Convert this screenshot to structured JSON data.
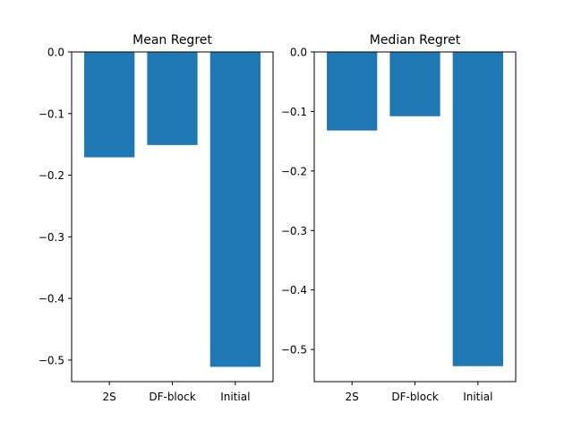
{
  "chart_data": [
    {
      "type": "bar",
      "title": "Mean Regret",
      "categories": [
        "2S",
        "DF-block",
        "Initial"
      ],
      "values": [
        -0.171,
        -0.151,
        -0.511
      ],
      "ylim": [
        -0.535,
        0.0
      ],
      "yticks": [
        0.0,
        -0.1,
        -0.2,
        -0.3,
        -0.4,
        -0.5
      ],
      "ytick_labels": [
        "0.0",
        "−0.1",
        "−0.2",
        "−0.3",
        "−0.4",
        "−0.5"
      ],
      "xlabel": "",
      "ylabel": "",
      "grid": false,
      "bar_color": "#1f77b4"
    },
    {
      "type": "bar",
      "title": "Median Regret",
      "categories": [
        "2S",
        "DF-block",
        "Initial"
      ],
      "values": [
        -0.132,
        -0.108,
        -0.528
      ],
      "ylim": [
        -0.554,
        0.0
      ],
      "yticks": [
        0.0,
        -0.1,
        -0.2,
        -0.3,
        -0.4,
        -0.5
      ],
      "ytick_labels": [
        "0.0",
        "−0.1",
        "−0.2",
        "−0.3",
        "−0.4",
        "−0.5"
      ],
      "xlabel": "",
      "ylabel": "",
      "grid": false,
      "bar_color": "#1f77b4"
    }
  ]
}
